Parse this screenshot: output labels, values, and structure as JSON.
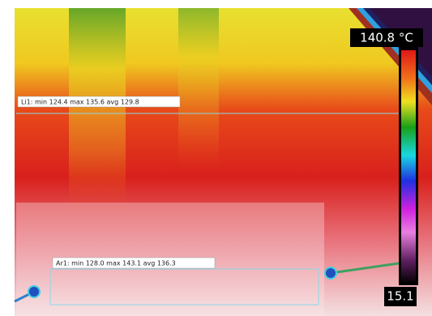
{
  "scale": {
    "max_label": "140.8 °C",
    "min_label": "15.1"
  },
  "overlays": [
    {
      "label": "Li1: min 124.4 max 135.6 avg 129.8"
    },
    {
      "label": "Ar1: min 128.0 max 143.1 avg 136.3"
    }
  ]
}
